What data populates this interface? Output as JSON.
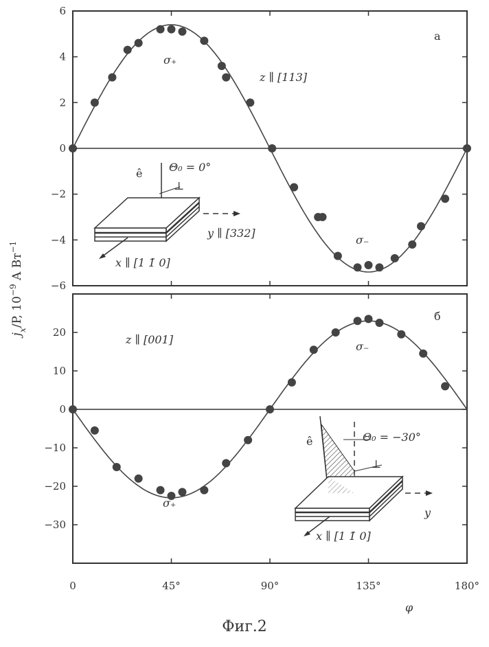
{
  "caption": "Фиг.2",
  "ylabel": "j_x/P, 10⁻⁹ A Вт⁻¹",
  "ylabel_parts": {
    "j": "j",
    "sub": "x",
    "rest": "/P, 10",
    "exp": "−9",
    "unit": " A Вт",
    "uexp": "−1"
  },
  "xlabel": "φ",
  "chart_data": [
    {
      "panel": "а",
      "type": "scatter",
      "xlim": [
        0,
        180
      ],
      "ylim": [
        -6,
        6
      ],
      "yticks": [
        6,
        4,
        2,
        0,
        -2,
        -4,
        -6
      ],
      "ytick_labels": [
        "6",
        "4",
        "2",
        "0",
        "−2",
        "−4",
        "−6"
      ],
      "curve": {
        "formula": "A·sin(2φ)",
        "amplitude": 5.4
      },
      "points": [
        [
          0,
          0
        ],
        [
          10,
          2
        ],
        [
          18,
          3.1
        ],
        [
          25,
          4.3
        ],
        [
          30,
          4.6
        ],
        [
          40,
          5.2
        ],
        [
          45,
          5.2
        ],
        [
          50,
          5.1
        ],
        [
          60,
          4.7
        ],
        [
          68,
          3.6
        ],
        [
          70,
          3.1
        ],
        [
          81,
          2
        ],
        [
          91,
          0
        ],
        [
          101,
          -1.7
        ],
        [
          112,
          -3
        ],
        [
          114,
          -3
        ],
        [
          121,
          -4.7
        ],
        [
          130,
          -5.2
        ],
        [
          135,
          -5.1
        ],
        [
          140,
          -5.2
        ],
        [
          147,
          -4.8
        ],
        [
          155,
          -4.2
        ],
        [
          159,
          -3.4
        ],
        [
          170,
          -2.2
        ],
        [
          180,
          0
        ]
      ],
      "annotations": {
        "sigma_plus": "σ₊",
        "sigma_minus": "σ₋",
        "orientation": "z ∥ [113]"
      },
      "inset": {
        "e": "ê",
        "theta": "Θ₀ = 0°",
        "y": "y ∥ [332]",
        "x": "x ∥ [1 1̄ 0]",
        "perp": "⊥"
      }
    },
    {
      "panel": "б",
      "type": "scatter",
      "xlim": [
        0,
        180
      ],
      "ylim": [
        -40,
        30
      ],
      "yticks": [
        20,
        10,
        0,
        -10,
        -20,
        -30
      ],
      "ytick_labels": [
        "20",
        "10",
        "0",
        "−10",
        "−20",
        "−30"
      ],
      "xticks": [
        0,
        45,
        90,
        135,
        180
      ],
      "xtick_labels": [
        "0",
        "45°",
        "90°",
        "135°",
        "180°"
      ],
      "curve": {
        "formula": "−A·sin(2φ)",
        "amplitude": 23
      },
      "points": [
        [
          0,
          0
        ],
        [
          10,
          -5.5
        ],
        [
          20,
          -15
        ],
        [
          30,
          -18
        ],
        [
          40,
          -21
        ],
        [
          45,
          -22.5
        ],
        [
          50,
          -21.5
        ],
        [
          60,
          -21
        ],
        [
          70,
          -14
        ],
        [
          80,
          -8
        ],
        [
          90,
          0
        ],
        [
          100,
          7
        ],
        [
          110,
          15.5
        ],
        [
          120,
          20
        ],
        [
          130,
          23
        ],
        [
          135,
          23.5
        ],
        [
          140,
          22.5
        ],
        [
          150,
          19.5
        ],
        [
          160,
          14.5
        ],
        [
          170,
          6
        ]
      ],
      "annotations": {
        "sigma_plus": "σ₊",
        "sigma_minus": "σ₋",
        "orientation": "z ∥ [001]"
      },
      "inset": {
        "e": "ê",
        "theta": "Θ₀ = −30°",
        "y": "y",
        "x": "x ∥ [1 1̄ 0]",
        "perp": "⊥"
      }
    }
  ]
}
